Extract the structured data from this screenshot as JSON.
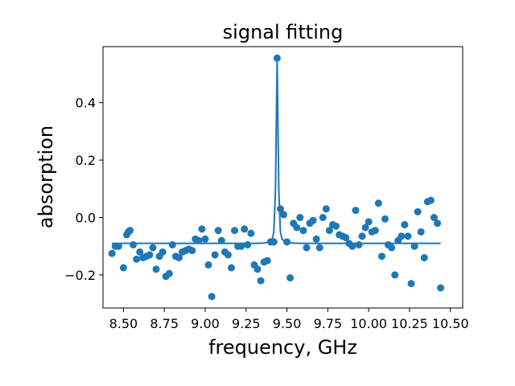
{
  "chart_data": {
    "type": "scatter",
    "title": "signal fitting",
    "xlabel": "frequency, GHz",
    "ylabel": "absorption",
    "xlim": [
      8.375,
      10.575
    ],
    "ylim": [
      -0.315,
      0.595
    ],
    "grid": false,
    "legend": "none",
    "color": "#1f77b4",
    "x_ticks": [
      8.5,
      8.75,
      9.0,
      9.25,
      9.5,
      9.75,
      10.0,
      10.25,
      10.5
    ],
    "x_tick_labels": [
      "8.50",
      "8.75",
      "9.00",
      "9.25",
      "9.50",
      "9.75",
      "10.00",
      "10.25",
      "10.50"
    ],
    "y_ticks": [
      -0.2,
      0.0,
      0.2,
      0.4
    ],
    "y_tick_labels": [
      "−0.2",
      "0.0",
      "0.2",
      "0.4"
    ],
    "series": [
      {
        "type": "scatter",
        "points": [
          [
            8.43,
            -0.125
          ],
          [
            8.45,
            -0.1
          ],
          [
            8.47,
            -0.1
          ],
          [
            8.5,
            -0.175
          ],
          [
            8.52,
            -0.06
          ],
          [
            8.53,
            -0.05
          ],
          [
            8.54,
            -0.045
          ],
          [
            8.56,
            -0.095
          ],
          [
            8.58,
            -0.145
          ],
          [
            8.6,
            -0.12
          ],
          [
            8.62,
            -0.14
          ],
          [
            8.64,
            -0.135
          ],
          [
            8.66,
            -0.13
          ],
          [
            8.68,
            -0.105
          ],
          [
            8.7,
            -0.18
          ],
          [
            8.72,
            -0.135
          ],
          [
            8.74,
            -0.12
          ],
          [
            8.76,
            -0.205
          ],
          [
            8.78,
            -0.195
          ],
          [
            8.8,
            -0.095
          ],
          [
            8.82,
            -0.135
          ],
          [
            8.84,
            -0.14
          ],
          [
            8.86,
            -0.12
          ],
          [
            8.88,
            -0.115
          ],
          [
            8.9,
            -0.11
          ],
          [
            8.92,
            -0.115
          ],
          [
            8.94,
            -0.075
          ],
          [
            8.96,
            -0.08
          ],
          [
            8.98,
            -0.04
          ],
          [
            9.0,
            -0.075
          ],
          [
            9.02,
            -0.165
          ],
          [
            9.04,
            -0.275
          ],
          [
            9.06,
            -0.13
          ],
          [
            9.08,
            -0.045
          ],
          [
            9.1,
            -0.08
          ],
          [
            9.12,
            -0.12
          ],
          [
            9.14,
            -0.13
          ],
          [
            9.16,
            -0.175
          ],
          [
            9.18,
            -0.045
          ],
          [
            9.2,
            -0.1
          ],
          [
            9.22,
            -0.1
          ],
          [
            9.24,
            -0.04
          ],
          [
            9.26,
            -0.095
          ],
          [
            9.28,
            -0.055
          ],
          [
            9.3,
            -0.165
          ],
          [
            9.32,
            -0.18
          ],
          [
            9.34,
            -0.22
          ],
          [
            9.36,
            -0.155
          ],
          [
            9.38,
            -0.15
          ],
          [
            9.4,
            -0.085
          ],
          [
            9.42,
            -0.085
          ],
          [
            9.44,
            0.555
          ],
          [
            9.46,
            0.03
          ],
          [
            9.48,
            0.01
          ],
          [
            9.5,
            -0.085
          ],
          [
            9.52,
            -0.21
          ],
          [
            9.54,
            -0.02
          ],
          [
            9.56,
            -0.035
          ],
          [
            9.58,
            0.0
          ],
          [
            9.6,
            -0.045
          ],
          [
            9.62,
            -0.105
          ],
          [
            9.64,
            -0.02
          ],
          [
            9.66,
            -0.01
          ],
          [
            9.68,
            -0.075
          ],
          [
            9.7,
            -0.105
          ],
          [
            9.72,
            0.0
          ],
          [
            9.74,
            0.03
          ],
          [
            9.76,
            -0.045
          ],
          [
            9.78,
            -0.025
          ],
          [
            9.8,
            -0.03
          ],
          [
            9.82,
            -0.06
          ],
          [
            9.84,
            -0.065
          ],
          [
            9.86,
            -0.07
          ],
          [
            9.88,
            -0.09
          ],
          [
            9.9,
            -0.1
          ],
          [
            9.92,
            0.025
          ],
          [
            9.94,
            -0.095
          ],
          [
            9.96,
            -0.065
          ],
          [
            9.98,
            -0.035
          ],
          [
            10.0,
            -0.015
          ],
          [
            10.02,
            -0.05
          ],
          [
            10.04,
            -0.045
          ],
          [
            10.06,
            0.05
          ],
          [
            10.08,
            -0.135
          ],
          [
            10.1,
            -0.005
          ],
          [
            10.12,
            -0.095
          ],
          [
            10.14,
            -0.105
          ],
          [
            10.16,
            -0.2
          ],
          [
            10.18,
            -0.08
          ],
          [
            10.2,
            -0.065
          ],
          [
            10.22,
            -0.025
          ],
          [
            10.24,
            -0.065
          ],
          [
            10.26,
            -0.23
          ],
          [
            10.28,
            -0.1
          ],
          [
            10.3,
            0.02
          ],
          [
            10.32,
            -0.05
          ],
          [
            10.34,
            -0.14
          ],
          [
            10.36,
            0.055
          ],
          [
            10.38,
            0.06
          ],
          [
            10.4,
            0.0
          ],
          [
            10.42,
            -0.02
          ],
          [
            10.44,
            -0.245
          ]
        ]
      },
      {
        "type": "line",
        "points": [
          [
            8.43,
            -0.09
          ],
          [
            9.3,
            -0.09
          ],
          [
            9.36,
            -0.089
          ],
          [
            9.39,
            -0.085
          ],
          [
            9.41,
            -0.075
          ],
          [
            9.42,
            -0.05
          ],
          [
            9.43,
            0.1
          ],
          [
            9.44,
            0.555
          ],
          [
            9.45,
            0.1
          ],
          [
            9.46,
            -0.05
          ],
          [
            9.47,
            -0.075
          ],
          [
            9.49,
            -0.085
          ],
          [
            9.52,
            -0.089
          ],
          [
            9.6,
            -0.09
          ],
          [
            10.44,
            -0.09
          ]
        ]
      }
    ]
  }
}
